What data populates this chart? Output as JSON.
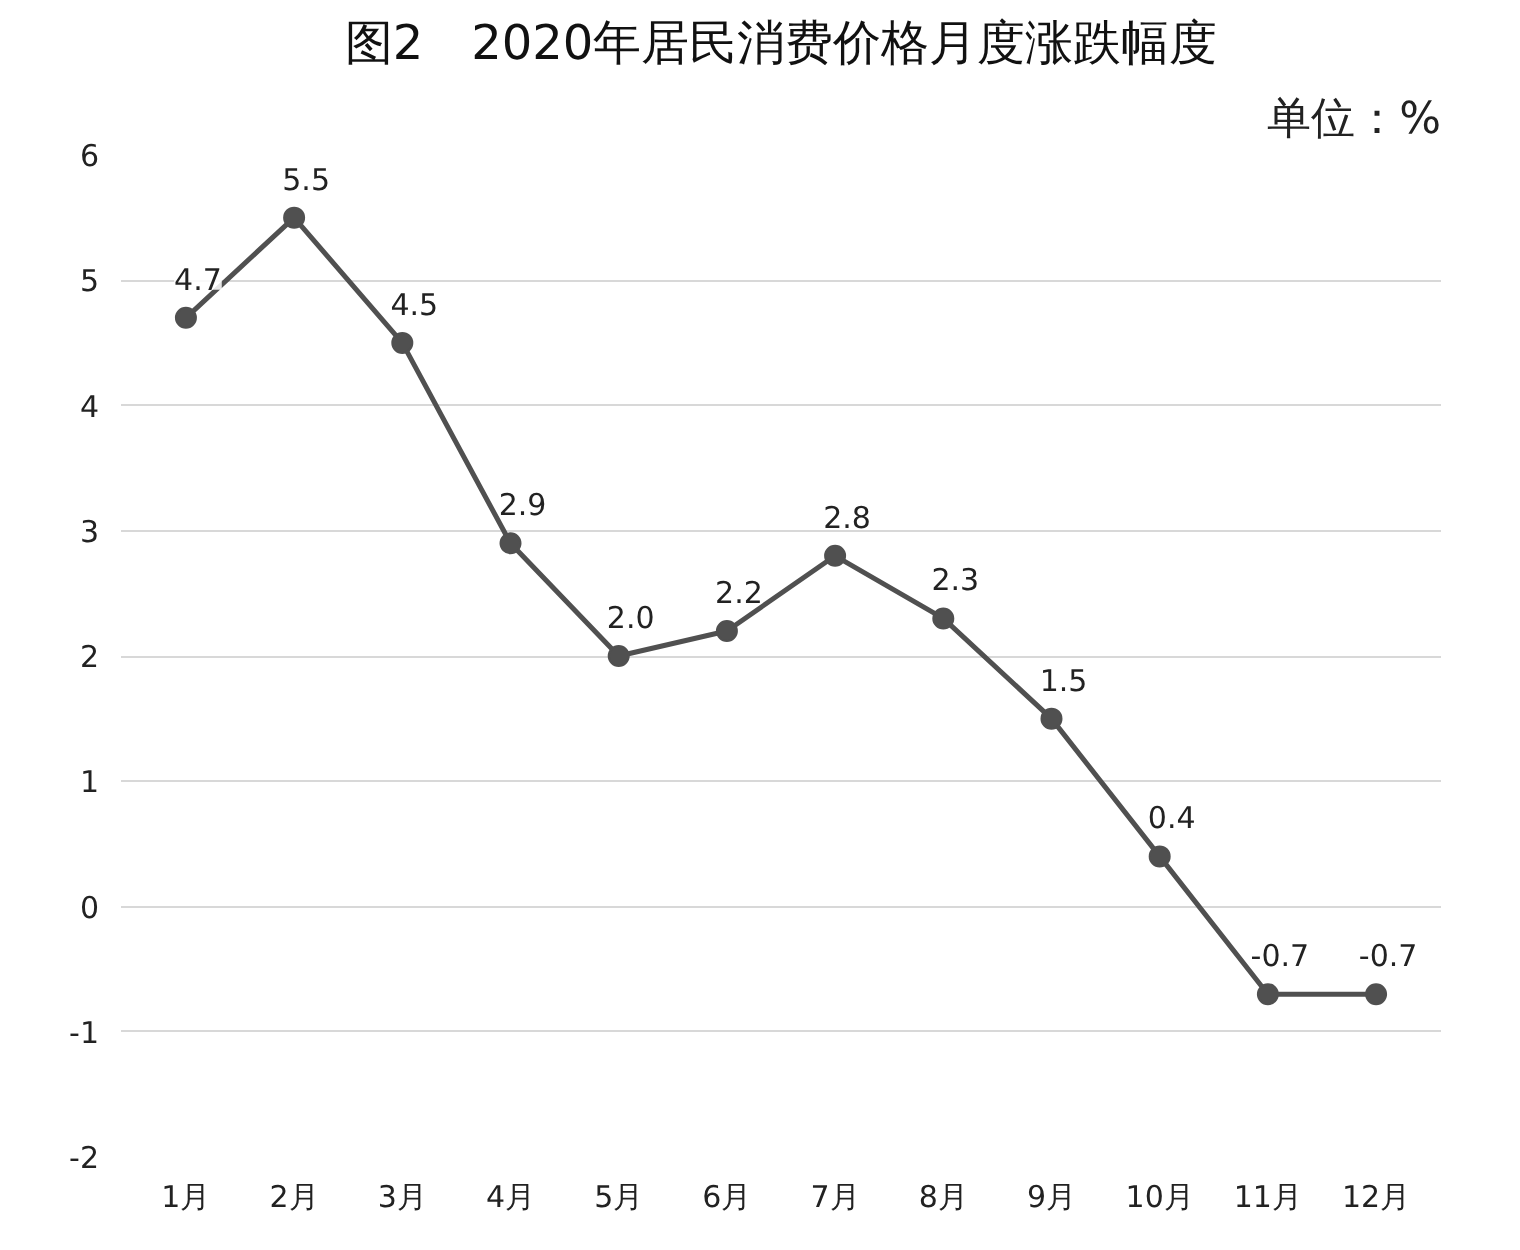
{
  "chart_data": {
    "type": "line",
    "title": "图2　2020年居民消费价格月度涨跌幅度",
    "annotations": [
      "单位：%"
    ],
    "categories": [
      "1月",
      "2月",
      "3月",
      "4月",
      "5月",
      "6月",
      "7月",
      "8月",
      "9月",
      "10月",
      "11月",
      "12月"
    ],
    "series": [
      {
        "color": "#505050",
        "values": [
          4.7,
          5.5,
          4.5,
          2.9,
          2.0,
          2.2,
          2.8,
          2.3,
          1.5,
          0.4,
          -0.7,
          -0.7
        ]
      }
    ],
    "value_labels": [
      "4.7",
      "5.5",
      "4.5",
      "2.9",
      "2.0",
      "2.2",
      "2.8",
      "2.3",
      "1.5",
      "0.4",
      "-0.7",
      "-0.7"
    ],
    "ylim": [
      -2,
      6
    ],
    "yticks": [
      -2,
      -1,
      0,
      1,
      2,
      3,
      4,
      5,
      6
    ],
    "grid": "y",
    "marker": "circle",
    "line_style": "solid"
  }
}
